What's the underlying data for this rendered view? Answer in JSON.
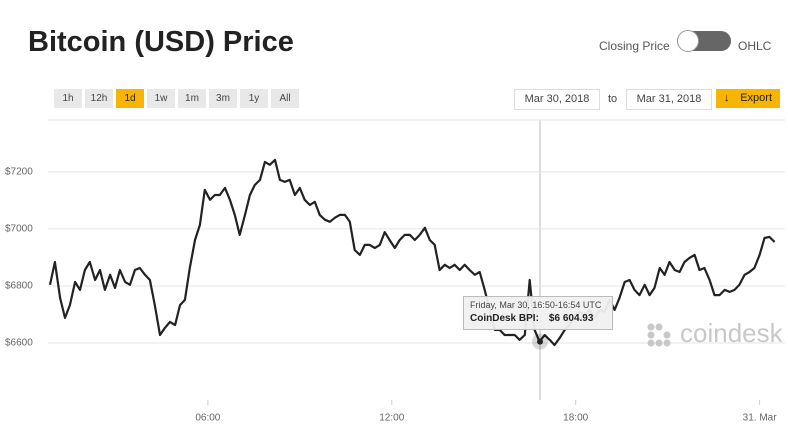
{
  "ui": {
    "toggle_left": "Closing Price",
    "toggle_right": "OHLC",
    "ranges": [
      "1h",
      "12h",
      "1d",
      "1w",
      "1m",
      "3m",
      "1y",
      "All"
    ],
    "active_range": "1d",
    "date_from": "Mar 30, 2018",
    "to_label": "to",
    "date_to": "Mar 31, 2018",
    "export": "Export",
    "logo": "coindesk"
  },
  "tooltip": {
    "title": "Friday, Mar 30, 16:50-16:54 UTC",
    "name": "CoinDesk BPI:",
    "value": "$6 604.93"
  },
  "chart_data": {
    "type": "line",
    "title": "Bitcoin (USD) Price",
    "x": [
      0.85,
      1.01,
      1.18,
      1.34,
      1.5,
      1.67,
      1.83,
      1.99,
      2.15,
      2.32,
      2.48,
      2.64,
      2.81,
      2.97,
      3.13,
      3.3,
      3.46,
      3.62,
      3.78,
      3.95,
      4.11,
      4.27,
      4.44,
      4.6,
      4.76,
      4.93,
      5.09,
      5.25,
      5.41,
      5.58,
      5.74,
      5.9,
      6.07,
      6.23,
      6.39,
      6.56,
      6.72,
      6.88,
      7.04,
      7.21,
      7.37,
      7.53,
      7.7,
      7.86,
      8.02,
      8.19,
      8.35,
      8.51,
      8.67,
      8.84,
      9.0,
      9.16,
      9.33,
      9.49,
      9.65,
      9.82,
      9.98,
      10.14,
      10.3,
      10.47,
      10.63,
      10.79,
      10.96,
      11.12,
      11.28,
      11.45,
      11.61,
      11.77,
      11.93,
      12.1,
      12.26,
      12.42,
      12.59,
      12.75,
      12.91,
      13.08,
      13.24,
      13.4,
      13.56,
      13.73,
      13.89,
      14.05,
      14.22,
      14.38,
      14.54,
      14.71,
      14.87,
      15.03,
      15.19,
      15.36,
      15.52,
      15.68,
      15.85,
      16.01,
      16.17,
      16.34,
      16.5,
      16.66,
      16.82,
      16.99,
      17.15,
      17.31,
      17.48,
      17.64,
      17.8,
      17.97,
      18.13,
      18.29,
      18.45,
      18.62,
      18.78,
      18.94,
      19.11,
      19.27,
      19.43,
      19.6,
      19.76,
      19.92,
      20.08,
      20.25,
      20.41,
      20.57,
      20.74,
      20.9,
      21.06,
      21.23,
      21.39,
      21.55,
      21.71,
      21.88,
      22.04,
      22.2,
      22.37,
      22.53,
      22.69,
      22.86,
      23.02,
      23.18,
      23.34,
      23.51,
      23.67,
      23.83,
      24.0,
      24.16,
      24.32,
      24.49
    ],
    "series": [
      {
        "name": "CoinDesk BPI",
        "color": "#222222",
        "values": [
          6804,
          6884,
          6758,
          6688,
          6733,
          6814,
          6786,
          6856,
          6884,
          6821,
          6856,
          6786,
          6839,
          6793,
          6856,
          6814,
          6804,
          6856,
          6863,
          6839,
          6821,
          6733,
          6628,
          6653,
          6674,
          6663,
          6733,
          6751,
          6863,
          6961,
          7014,
          7137,
          7102,
          7119,
          7119,
          7144,
          7102,
          7049,
          6979,
          7049,
          7119,
          7154,
          7172,
          7235,
          7225,
          7242,
          7172,
          7165,
          7172,
          7119,
          7144,
          7102,
          7084,
          7095,
          7049,
          7032,
          7025,
          7039,
          7049,
          7049,
          7025,
          6926,
          6909,
          6944,
          6944,
          6933,
          6944,
          6989,
          6961,
          6933,
          6961,
          6979,
          6979,
          6961,
          6979,
          7004,
          6961,
          6944,
          6856,
          6874,
          6863,
          6874,
          6856,
          6874,
          6856,
          6839,
          6849,
          6786,
          6716,
          6646,
          6646,
          6628,
          6628,
          6628,
          6611,
          6628,
          6821,
          6646,
          6604.93,
          6628,
          6611,
          6593,
          6618,
          6646,
          6663,
          6698,
          6709,
          6698,
          6716,
          6688,
          6716,
          6709,
          6751,
          6716,
          6758,
          6814,
          6821,
          6786,
          6768,
          6804,
          6768,
          6793,
          6863,
          6839,
          6884,
          6856,
          6849,
          6884,
          6898,
          6909,
          6856,
          6863,
          6821,
          6768,
          6768,
          6786,
          6779,
          6786,
          6804,
          6839,
          6849,
          6863,
          6909,
          6968,
          6972,
          6954
        ]
      }
    ],
    "xlim": [
      0.85,
      24.6
    ],
    "xticks": [
      {
        "value": 6,
        "label": "06:00"
      },
      {
        "value": 12,
        "label": "12:00"
      },
      {
        "value": 18,
        "label": "18:00"
      },
      {
        "value": 24,
        "label": "31. Mar"
      }
    ],
    "ylim": [
      6400,
      7382
    ],
    "yticks": [
      {
        "value": 6600,
        "label": "$6600"
      },
      {
        "value": 6800,
        "label": "$6800"
      },
      {
        "value": 7000,
        "label": "$7000"
      },
      {
        "value": 7200,
        "label": "$7200"
      }
    ],
    "grid": true
  }
}
